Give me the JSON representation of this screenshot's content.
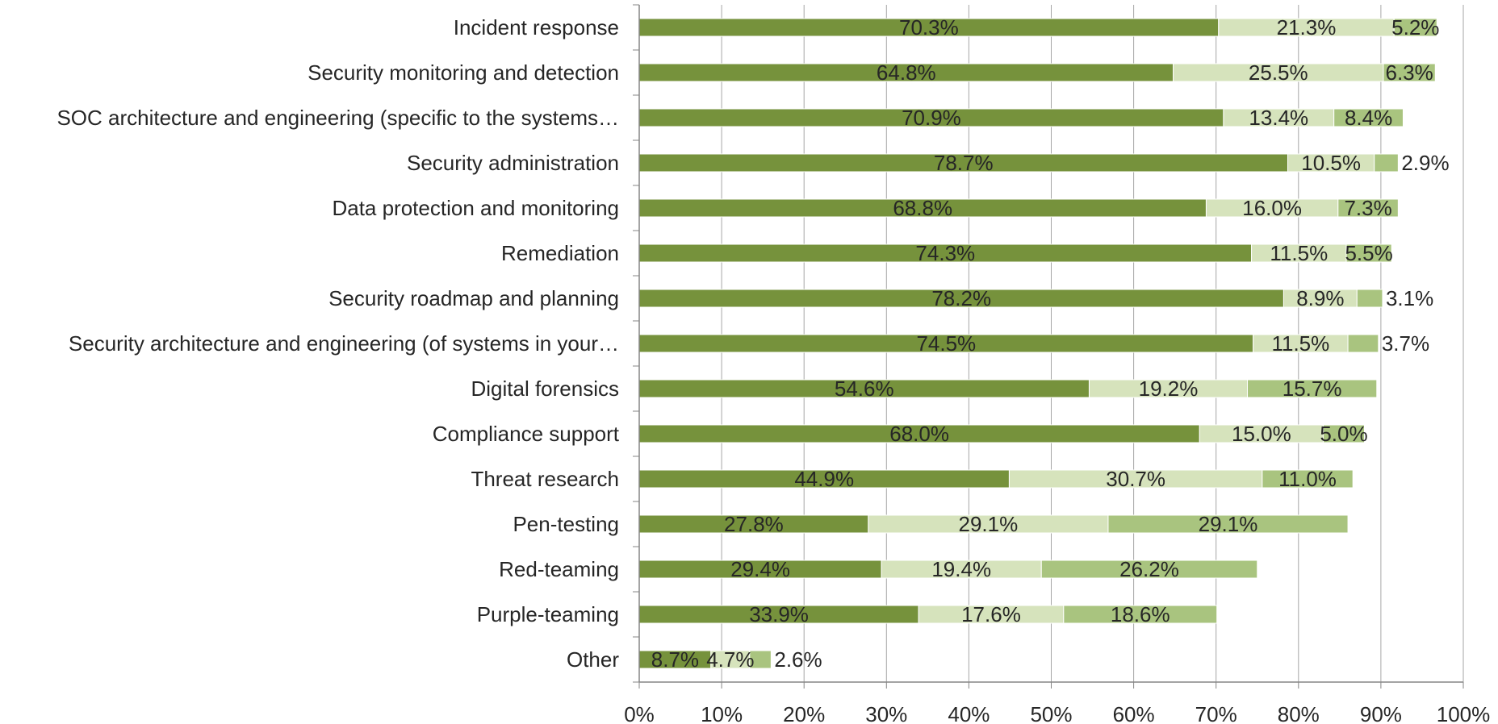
{
  "chart_data": {
    "type": "bar",
    "orientation": "horizontal",
    "stacked": true,
    "categories": [
      "Incident response",
      "Security monitoring and detection",
      "SOC architecture and engineering (specific to the systems…",
      "Security administration",
      "Data protection and monitoring",
      "Remediation",
      "Security roadmap and planning",
      "Security architecture and engineering (of systems in your…",
      "Digital forensics",
      "Compliance support",
      "Threat research",
      "Pen-testing",
      "Red-teaming",
      "Purple-teaming",
      "Other"
    ],
    "series": [
      {
        "color": "#76923c",
        "values": [
          70.3,
          64.8,
          70.9,
          78.7,
          68.8,
          74.3,
          78.2,
          74.5,
          54.6,
          68.0,
          44.9,
          27.8,
          29.4,
          33.9,
          8.7
        ]
      },
      {
        "color": "#d6e3bc",
        "values": [
          21.3,
          25.5,
          13.4,
          10.5,
          16.0,
          11.5,
          8.9,
          11.5,
          19.2,
          15.0,
          30.7,
          29.1,
          19.4,
          17.6,
          4.7
        ]
      },
      {
        "color": "#a9c47f",
        "values": [
          5.2,
          6.3,
          8.4,
          2.9,
          7.3,
          5.5,
          3.1,
          3.7,
          15.7,
          5.0,
          11.0,
          29.1,
          26.2,
          18.6,
          2.6
        ]
      }
    ],
    "data_labels": [
      [
        "70.3%",
        "64.8%",
        "70.9%",
        "78.7%",
        "68.8%",
        "74.3%",
        "78.2%",
        "74.5%",
        "54.6%",
        "68.0%",
        "44.9%",
        "27.8%",
        "29.4%",
        "33.9%",
        "8.7%"
      ],
      [
        "21.3%",
        "25.5%",
        "13.4%",
        "10.5%",
        "16.0%",
        "11.5%",
        "8.9%",
        "11.5%",
        "19.2%",
        "15.0%",
        "30.7%",
        "29.1%",
        "19.4%",
        "17.6%",
        "4.7%"
      ],
      [
        "5.2%",
        "6.3%",
        "8.4%",
        "2.9%",
        "7.3%",
        "5.5%",
        "3.1%",
        "3.7%",
        "15.7%",
        "5.0%",
        "11.0%",
        "29.1%",
        "26.2%",
        "18.6%",
        "2.6%"
      ]
    ],
    "xlim": [
      0,
      100
    ],
    "x_ticks": [
      0,
      10,
      20,
      30,
      40,
      50,
      60,
      70,
      80,
      90,
      100
    ],
    "x_tick_labels": [
      "0%",
      "10%",
      "20%",
      "30%",
      "40%",
      "50%",
      "60%",
      "70%",
      "80%",
      "90%",
      "100%"
    ],
    "grid": "vertical",
    "legend": "none",
    "title": "",
    "xlabel": "",
    "ylabel": ""
  }
}
